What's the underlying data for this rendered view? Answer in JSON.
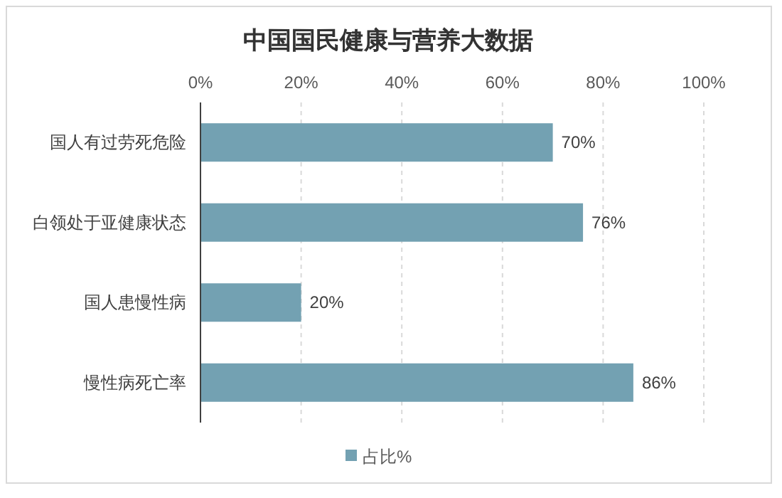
{
  "chart_data": {
    "type": "bar",
    "title": "中国国民健康与营养大数据",
    "orientation": "horizontal",
    "categories": [
      "国人有过劳死危险",
      "白领处于亚健康状态",
      "国人患慢性病",
      "慢性病死亡率"
    ],
    "series": [
      {
        "name": "占比%",
        "color": "#73a1b2",
        "values": [
          70,
          76,
          20,
          86
        ],
        "value_labels": [
          "70%",
          "76%",
          "20%",
          "86%"
        ]
      }
    ],
    "xlim": [
      0,
      100
    ],
    "xticks": [
      {
        "value": 0,
        "label": "0%"
      },
      {
        "value": 20,
        "label": "20%"
      },
      {
        "value": 40,
        "label": "40%"
      },
      {
        "value": 60,
        "label": "60%"
      },
      {
        "value": 80,
        "label": "80%"
      },
      {
        "value": 100,
        "label": "100%"
      }
    ],
    "grid": "x",
    "legend": "bottom"
  }
}
